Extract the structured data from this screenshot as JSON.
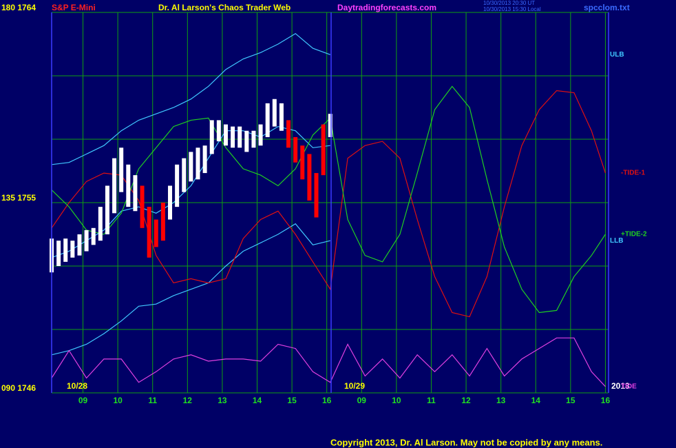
{
  "chart_data": {
    "type": "line",
    "title": "Dr. Al Larson's Chaos Trader Web",
    "subtitle": "S&P E-Mini",
    "site": "Daytradingforecasts.com",
    "timestamps": [
      "10/30/2013 20:30 UT",
      "10/30/2013 15:30 Local"
    ],
    "filename": "spcclom.txt",
    "copyright": "Copyright 2013, Dr. Al Larson. May not be copied by any means.",
    "annotations": [
      "10/28",
      "10/29",
      "2013"
    ],
    "xlim": [
      0,
      15.99
    ],
    "xticks": [
      {
        "value": 0.9,
        "label": "09"
      },
      {
        "value": 1.9,
        "label": "10"
      },
      {
        "value": 2.9,
        "label": "11"
      },
      {
        "value": 3.9,
        "label": "12"
      },
      {
        "value": 4.9,
        "label": "13"
      },
      {
        "value": 5.9,
        "label": "14"
      },
      {
        "value": 6.9,
        "label": "15"
      },
      {
        "value": 7.9,
        "label": "16"
      },
      {
        "value": 8.9,
        "label": "09"
      },
      {
        "value": 9.9,
        "label": "10"
      },
      {
        "value": 10.9,
        "label": "11"
      },
      {
        "value": 11.9,
        "label": "12"
      },
      {
        "value": 12.9,
        "label": "13"
      },
      {
        "value": 13.9,
        "label": "14"
      },
      {
        "value": 14.9,
        "label": "15"
      },
      {
        "value": 15.9,
        "label": "16"
      }
    ],
    "ylim": [
      1746,
      1764
    ],
    "yticks": [
      {
        "value": 1764,
        "label": "180 1764"
      },
      {
        "value": 1755,
        "label": "135 1755"
      },
      {
        "value": 1746,
        "label": "090 1746"
      }
    ],
    "ygrid": [
      1761,
      1758,
      1755,
      1752,
      1749
    ],
    "grid": true,
    "x": [
      0,
      0.5,
      1,
      1.5,
      2,
      2.5,
      3,
      3.5,
      4,
      4.5,
      5,
      5.5,
      6,
      6.5,
      7,
      7.5,
      8,
      8.5,
      9,
      9.5,
      10,
      10.5,
      11,
      11.5,
      12,
      12.5,
      13,
      13.5,
      14,
      14.5,
      15,
      15.5,
      15.9
    ],
    "series": [
      {
        "name": "ULB",
        "color": "#40c8ff",
        "values": [
          1756.8,
          1756.9,
          1757.3,
          1757.7,
          1758.4,
          1758.9,
          1759.2,
          1759.5,
          1759.9,
          1760.5,
          1761.3,
          1761.8,
          1762.1,
          1762.5,
          1763.0,
          1762.3,
          1762.0,
          null,
          null,
          null,
          null,
          null,
          null,
          null,
          null,
          null,
          null,
          null,
          null,
          null,
          null,
          null,
          null
        ]
      },
      {
        "name": "LLB",
        "color": "#40c8ff",
        "values": [
          1747.8,
          1748.0,
          1748.3,
          1748.8,
          1749.4,
          1750.1,
          1750.2,
          1750.6,
          1750.9,
          1751.2,
          1752.0,
          1752.7,
          1753.1,
          1753.5,
          1754.0,
          1753.0,
          1753.2,
          null,
          null,
          null,
          null,
          null,
          null,
          null,
          null,
          null,
          null,
          null,
          null,
          null,
          null,
          null,
          null
        ]
      },
      {
        "color": "#40c8ff",
        "values": [
          1752.4,
          1752.7,
          1753.2,
          1753.7,
          1754.6,
          1754.8,
          1754.5,
          1755.0,
          1755.8,
          1757.1,
          1758.4,
          1758.4,
          1758.1,
          1758.6,
          1758.4,
          1757.6,
          1757.7,
          null,
          null,
          null,
          null,
          null,
          null,
          null,
          null,
          null,
          null,
          null,
          null,
          null,
          null,
          null,
          null
        ]
      },
      {
        "name": "-TIDE-1",
        "color": "#e01010",
        "values": [
          1753.8,
          1755.0,
          1756.0,
          1756.4,
          1756.3,
          1755.1,
          1752.5,
          1751.2,
          1751.4,
          1751.2,
          1751.4,
          1753.3,
          1754.2,
          1754.6,
          1753.5,
          1752.2,
          1750.9,
          1757.1,
          1757.7,
          1757.9,
          1757.1,
          1754.2,
          1751.5,
          1749.8,
          1749.6,
          1751.5,
          1754.8,
          1757.7,
          1759.4,
          1760.3,
          1760.2,
          1758.4,
          1756.4
        ]
      },
      {
        "name": "+TIDE-2",
        "color": "#20d020",
        "values": [
          1755.6,
          1754.8,
          1753.7,
          1753.5,
          1754.5,
          1756.6,
          1757.6,
          1758.6,
          1758.9,
          1759.0,
          1757.6,
          1756.6,
          1756.3,
          1755.8,
          1756.6,
          1758.2,
          1759.0,
          1754.2,
          1752.5,
          1752.2,
          1753.5,
          1756.4,
          1759.4,
          1760.5,
          1759.5,
          1756.1,
          1752.9,
          1750.9,
          1749.8,
          1749.9,
          1751.5,
          1752.5,
          1753.5
        ]
      },
      {
        "name": "TIDE",
        "color": "#e040e0",
        "values": [
          1746.7,
          1748.0,
          1746.7,
          1747.6,
          1747.6,
          1746.5,
          1747.0,
          1747.6,
          1747.8,
          1747.5,
          1747.6,
          1747.6,
          1747.5,
          1748.3,
          1748.1,
          1747.0,
          1746.5,
          1748.3,
          1746.8,
          1747.6,
          1746.7,
          1747.8,
          1747.0,
          1747.8,
          1746.8,
          1748.1,
          1746.8,
          1747.6,
          1748.1,
          1748.6,
          1748.6,
          1747.0,
          1746.3
        ]
      }
    ],
    "bars": {
      "x": [
        0,
        0.2,
        0.4,
        0.6,
        0.8,
        1.0,
        1.2,
        1.4,
        1.6,
        1.8,
        2.0,
        2.2,
        2.4,
        2.6,
        2.8,
        3.0,
        3.2,
        3.4,
        3.6,
        3.8,
        4.0,
        4.2,
        4.4,
        4.6,
        4.8,
        5.0,
        5.2,
        5.4,
        5.6,
        5.8,
        6.0,
        6.2,
        6.4,
        6.6,
        6.8,
        7.0,
        7.2,
        7.4,
        7.6,
        7.8,
        8.0
      ],
      "high": [
        1753.3,
        1753.2,
        1753.3,
        1753.2,
        1753.5,
        1753.7,
        1753.8,
        1754.8,
        1755.8,
        1757.1,
        1757.6,
        1756.8,
        1756.3,
        1755.8,
        1754.8,
        1754.2,
        1755.0,
        1755.8,
        1756.8,
        1757.1,
        1757.4,
        1757.6,
        1757.7,
        1758.9,
        1758.9,
        1758.7,
        1758.6,
        1758.6,
        1758.4,
        1758.4,
        1758.7,
        1759.7,
        1759.9,
        1759.7,
        1758.9,
        1758.1,
        1757.7,
        1757.3,
        1756.4,
        1758.7,
        1759.2
      ],
      "low": [
        1751.7,
        1752.0,
        1752.2,
        1752.4,
        1752.5,
        1752.7,
        1753.0,
        1753.2,
        1753.5,
        1754.5,
        1755.5,
        1754.8,
        1754.6,
        1753.8,
        1752.4,
        1752.9,
        1753.2,
        1754.2,
        1754.8,
        1755.5,
        1756.0,
        1756.1,
        1756.4,
        1757.3,
        1757.9,
        1757.7,
        1757.6,
        1757.6,
        1757.4,
        1757.6,
        1757.7,
        1758.1,
        1758.6,
        1758.4,
        1757.6,
        1756.9,
        1756.1,
        1755.1,
        1754.3,
        1756.3,
        1758.1
      ],
      "colors": [
        "#ffffff",
        "#ffffff",
        "#ffffff",
        "#ffffff",
        "#ffffff",
        "#ffffff",
        "#ffffff",
        "#ffffff",
        "#ffffff",
        "#ffffff",
        "#ffffff",
        "#ffffff",
        "#ffffff",
        "#ff0000",
        "#ff0000",
        "#ff0000",
        "#ff0000",
        "#ffffff",
        "#ffffff",
        "#ffffff",
        "#ffffff",
        "#ffffff",
        "#ffffff",
        "#ffffff",
        "#ffffff",
        "#ffffff",
        "#ffffff",
        "#ffffff",
        "#ffffff",
        "#ffffff",
        "#ffffff",
        "#ffffff",
        "#ffffff",
        "#ffffff",
        "#ff0000",
        "#ff0000",
        "#ff0000",
        "#ff0000",
        "#ff0000",
        "#ff0000",
        "#ffffff"
      ]
    }
  }
}
